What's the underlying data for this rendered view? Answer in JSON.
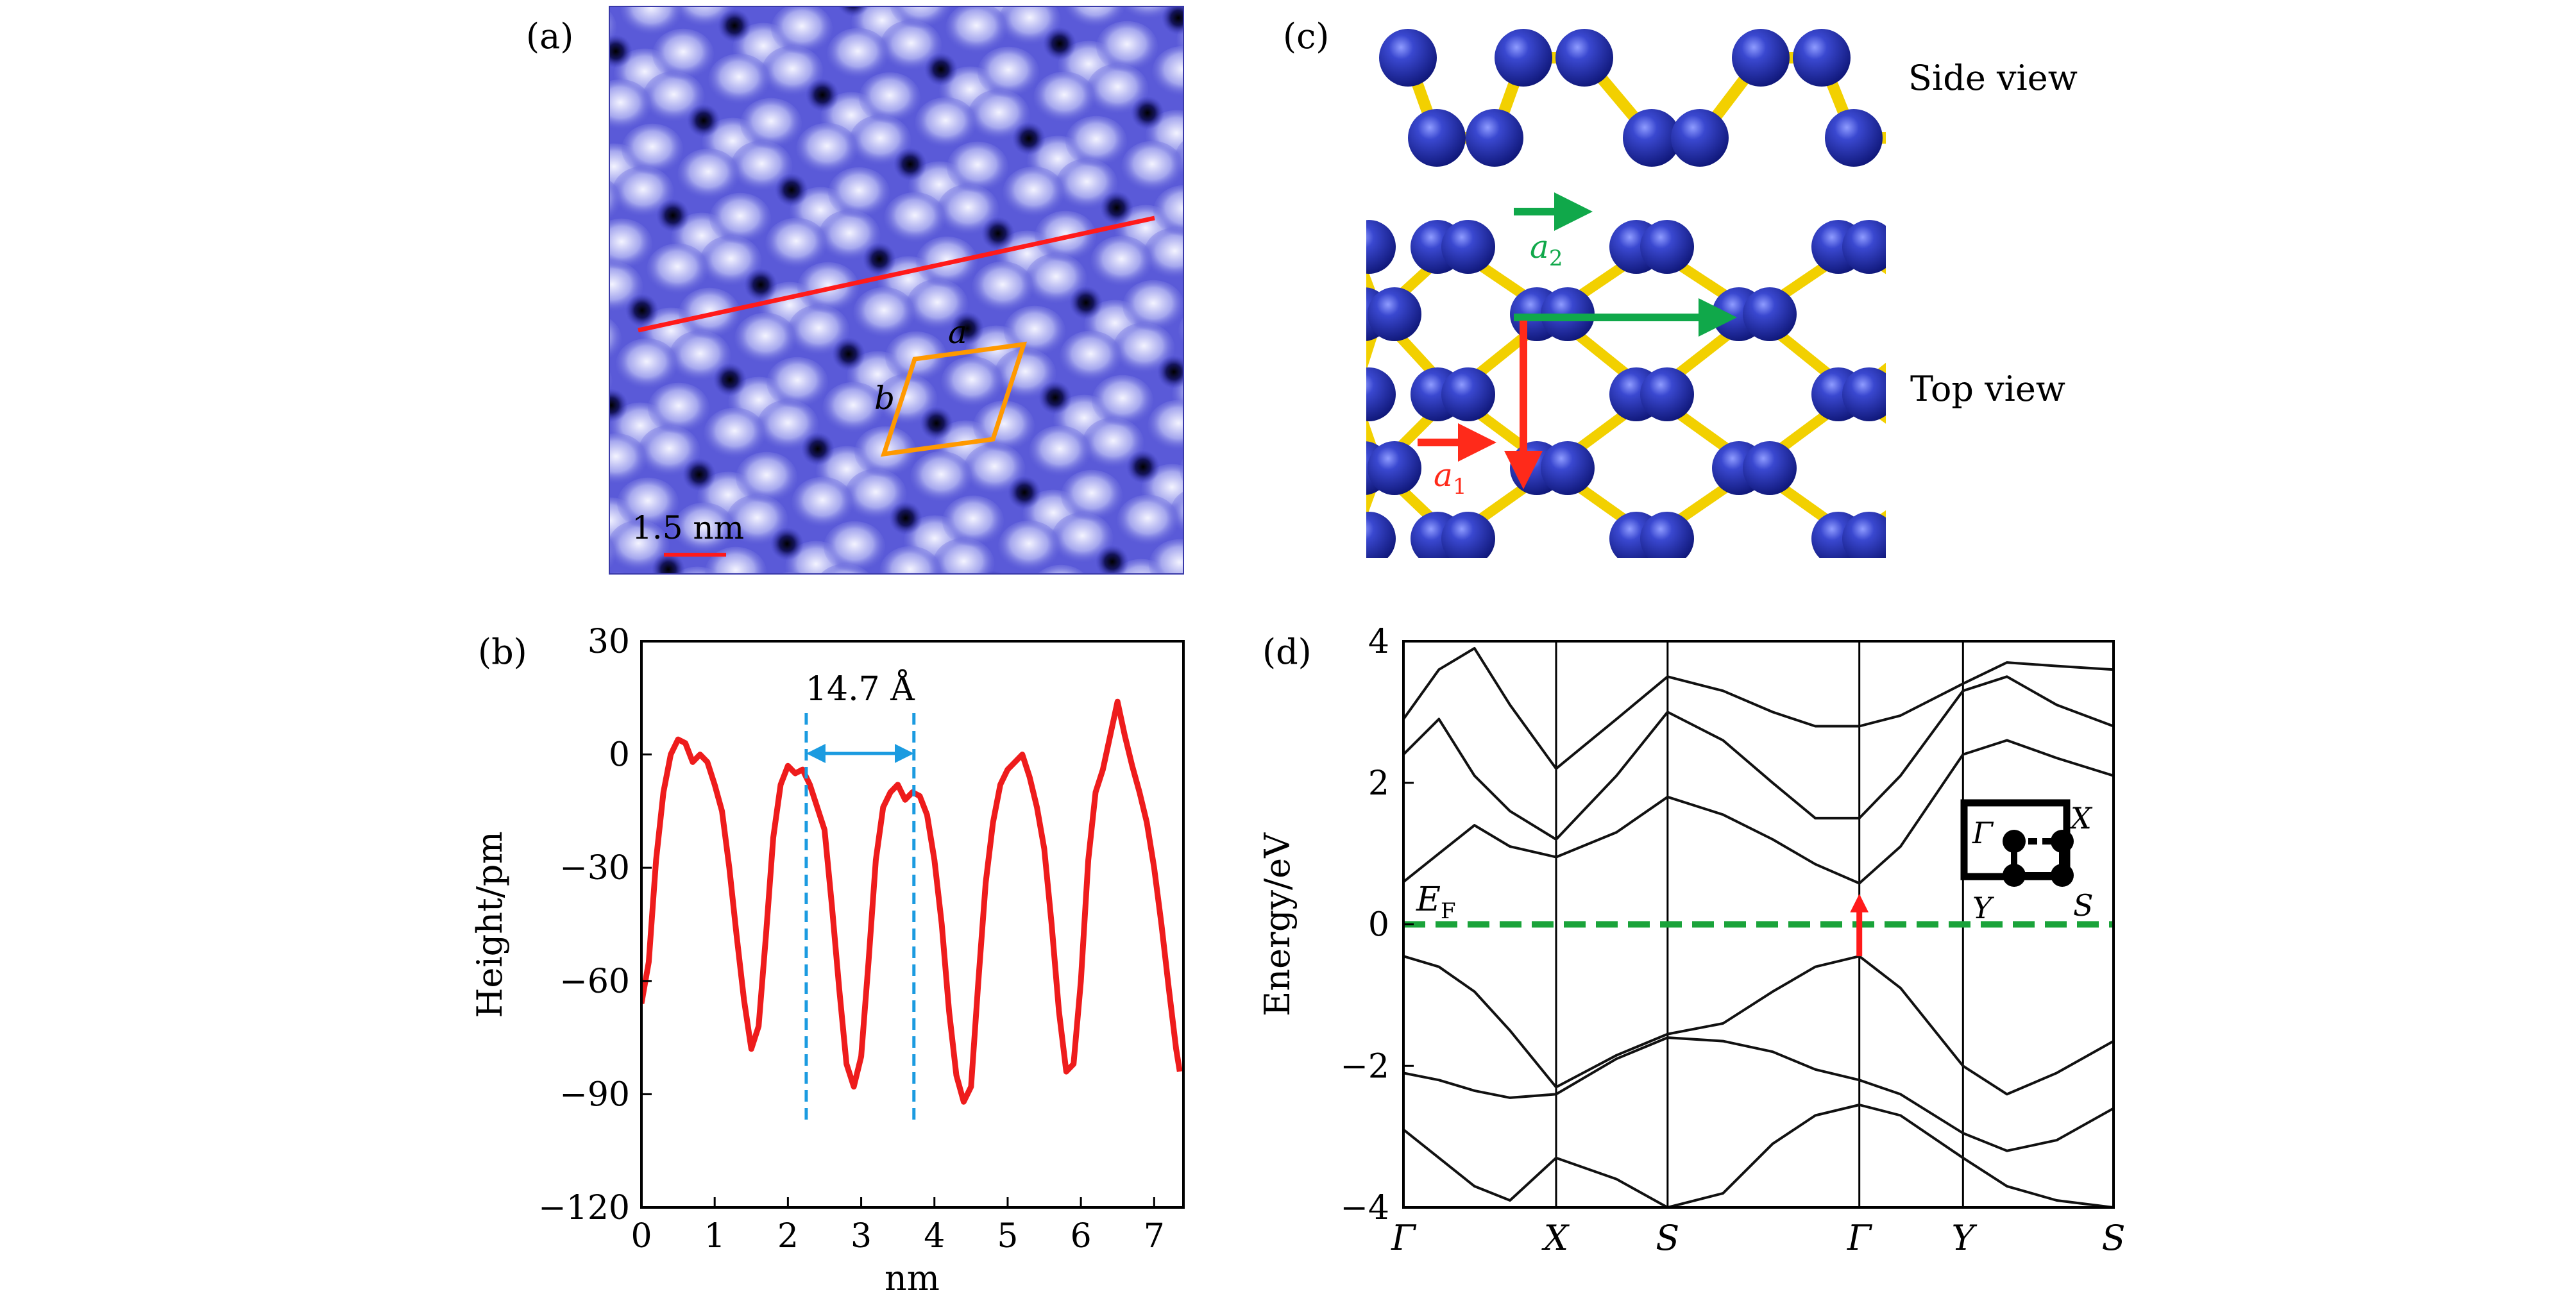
{
  "panel_labels": {
    "a": "(a)",
    "b": "(b)",
    "c": "(c)",
    "d": "(d)"
  },
  "panel_a": {
    "scale_bar": "1.5 nm",
    "cell_labels": {
      "a": "a",
      "b": "b"
    },
    "colors": {
      "profile_line": "#ff1a1a",
      "cell": "#ff9900",
      "image": "#5a5ad8",
      "pits": "#000000"
    }
  },
  "panel_c": {
    "side_view_label": "Side view",
    "top_view_label": "Top view",
    "vector_a1": {
      "letter": "a",
      "sub": "1",
      "color": "#ff2a1a"
    },
    "vector_a2": {
      "letter": "a",
      "sub": "2",
      "color": "#10a84a"
    },
    "colors": {
      "atom": "#2936b8",
      "bond": "#f2d000"
    }
  },
  "chart_data": [
    {
      "type": "line",
      "panel": "b",
      "xlabel": "nm",
      "ylabel": "Height/pm",
      "xlim": [
        0,
        7.4
      ],
      "ylim": [
        -120,
        30
      ],
      "xticks": [
        0,
        1,
        2,
        3,
        4,
        5,
        6,
        7
      ],
      "yticks": [
        30,
        0,
        -30,
        -60,
        -90,
        -120
      ],
      "ytick_labels": [
        "30",
        "0",
        "−30",
        "−60",
        "−90",
        "−120"
      ],
      "annotation": {
        "text": "14.7 Å",
        "x_start": 2.25,
        "x_end": 3.72
      },
      "series": [
        {
          "color": "#ee1c1c",
          "x": [
            0.0,
            0.1,
            0.2,
            0.3,
            0.4,
            0.5,
            0.6,
            0.7,
            0.8,
            0.9,
            1.0,
            1.1,
            1.2,
            1.3,
            1.4,
            1.5,
            1.6,
            1.7,
            1.8,
            1.9,
            2.0,
            2.1,
            2.2,
            2.3,
            2.4,
            2.5,
            2.6,
            2.7,
            2.8,
            2.9,
            3.0,
            3.1,
            3.2,
            3.3,
            3.4,
            3.5,
            3.6,
            3.7,
            3.8,
            3.9,
            4.0,
            4.1,
            4.2,
            4.3,
            4.4,
            4.5,
            4.6,
            4.7,
            4.8,
            4.9,
            5.0,
            5.1,
            5.2,
            5.3,
            5.4,
            5.5,
            5.6,
            5.7,
            5.8,
            5.9,
            6.0,
            6.1,
            6.2,
            6.3,
            6.4,
            6.5,
            6.6,
            6.7,
            6.8,
            6.9,
            7.0,
            7.1,
            7.2,
            7.3,
            7.35
          ],
          "y": [
            -66,
            -55,
            -28,
            -10,
            0,
            4,
            3,
            -2,
            0,
            -2,
            -8,
            -15,
            -30,
            -48,
            -65,
            -78,
            -72,
            -48,
            -22,
            -8,
            -3,
            -5,
            -4,
            -8,
            -14,
            -20,
            -40,
            -62,
            -82,
            -88,
            -80,
            -55,
            -28,
            -14,
            -10,
            -8,
            -12,
            -10,
            -11,
            -16,
            -28,
            -45,
            -68,
            -85,
            -92,
            -88,
            -60,
            -34,
            -18,
            -8,
            -4,
            -2,
            0,
            -6,
            -14,
            -25,
            -45,
            -68,
            -84,
            -82,
            -60,
            -28,
            -10,
            -4,
            5,
            14,
            5,
            -3,
            -10,
            -18,
            -30,
            -45,
            -62,
            -78,
            -84
          ]
        }
      ]
    },
    {
      "type": "line",
      "panel": "d",
      "ylabel": "Energy/eV",
      "ylim": [
        -4,
        4
      ],
      "yticks": [
        4,
        2,
        0,
        -2,
        -4
      ],
      "ytick_labels": [
        "4",
        "2",
        "0",
        "−2",
        "−4"
      ],
      "kpath": [
        "Γ",
        "X",
        "S",
        "Γ",
        "Y",
        "S"
      ],
      "kpath_positions": [
        0,
        0.215,
        0.372,
        0.642,
        0.788,
        1.0
      ],
      "fermi_label": {
        "main": "E",
        "sub": "F"
      },
      "fermi_energy": 0,
      "gap_arrow": {
        "from": -0.45,
        "to": 0.58,
        "k": 0.642
      },
      "bz_labels": [
        "Γ",
        "X",
        "Y",
        "S"
      ],
      "colors": {
        "bands": "#111111",
        "fermi": "#1aa33a",
        "arrow": "#ff1a1a"
      },
      "bands": [
        {
          "k": [
            0,
            0.05,
            0.1,
            0.15,
            0.215,
            0.3,
            0.372,
            0.45,
            0.52,
            0.58,
            0.642,
            0.7,
            0.788,
            0.85,
            0.92,
            1.0
          ],
          "e": [
            -0.45,
            -0.6,
            -0.95,
            -1.5,
            -2.3,
            -1.85,
            -1.55,
            -1.4,
            -0.95,
            -0.6,
            -0.45,
            -0.9,
            -2.0,
            -2.4,
            -2.1,
            -1.65
          ]
        },
        {
          "k": [
            0,
            0.05,
            0.1,
            0.15,
            0.215,
            0.3,
            0.372,
            0.45,
            0.52,
            0.58,
            0.642,
            0.7,
            0.788,
            0.85,
            0.92,
            1.0
          ],
          "e": [
            -2.1,
            -2.2,
            -2.35,
            -2.45,
            -2.4,
            -1.9,
            -1.6,
            -1.65,
            -1.8,
            -2.05,
            -2.2,
            -2.4,
            -2.95,
            -3.2,
            -3.05,
            -2.6
          ]
        },
        {
          "k": [
            0,
            0.05,
            0.1,
            0.15,
            0.215,
            0.3,
            0.372,
            0.45,
            0.52,
            0.58,
            0.642,
            0.7,
            0.788,
            0.85,
            0.92,
            1.0
          ],
          "e": [
            -2.9,
            -3.3,
            -3.7,
            -3.9,
            -3.3,
            -3.6,
            -4.0,
            -3.8,
            -3.1,
            -2.7,
            -2.55,
            -2.7,
            -3.3,
            -3.7,
            -3.9,
            -4.0
          ]
        },
        {
          "k": [
            0,
            0.05,
            0.1,
            0.15,
            0.215,
            0.3,
            0.372,
            0.45,
            0.52,
            0.58,
            0.642,
            0.7,
            0.788,
            0.85,
            0.92,
            1.0
          ],
          "e": [
            0.6,
            1.0,
            1.4,
            1.1,
            0.95,
            1.3,
            1.8,
            1.55,
            1.2,
            0.85,
            0.58,
            1.1,
            2.4,
            2.6,
            2.35,
            2.1
          ]
        },
        {
          "k": [
            0,
            0.05,
            0.1,
            0.15,
            0.215,
            0.3,
            0.372,
            0.45,
            0.52,
            0.58,
            0.642,
            0.7,
            0.788,
            0.85,
            0.92,
            1.0
          ],
          "e": [
            2.4,
            2.9,
            2.1,
            1.6,
            1.2,
            2.1,
            3.0,
            2.6,
            2.0,
            1.5,
            1.5,
            2.1,
            3.3,
            3.5,
            3.1,
            2.8
          ]
        },
        {
          "k": [
            0,
            0.05,
            0.1,
            0.15,
            0.215,
            0.3,
            0.372,
            0.45,
            0.52,
            0.58,
            0.642,
            0.7,
            0.788,
            0.85,
            0.92,
            1.0
          ],
          "e": [
            2.9,
            3.6,
            3.9,
            3.1,
            2.2,
            2.9,
            3.5,
            3.3,
            3.0,
            2.8,
            2.8,
            2.95,
            3.4,
            3.7,
            3.65,
            3.6
          ]
        }
      ]
    }
  ]
}
